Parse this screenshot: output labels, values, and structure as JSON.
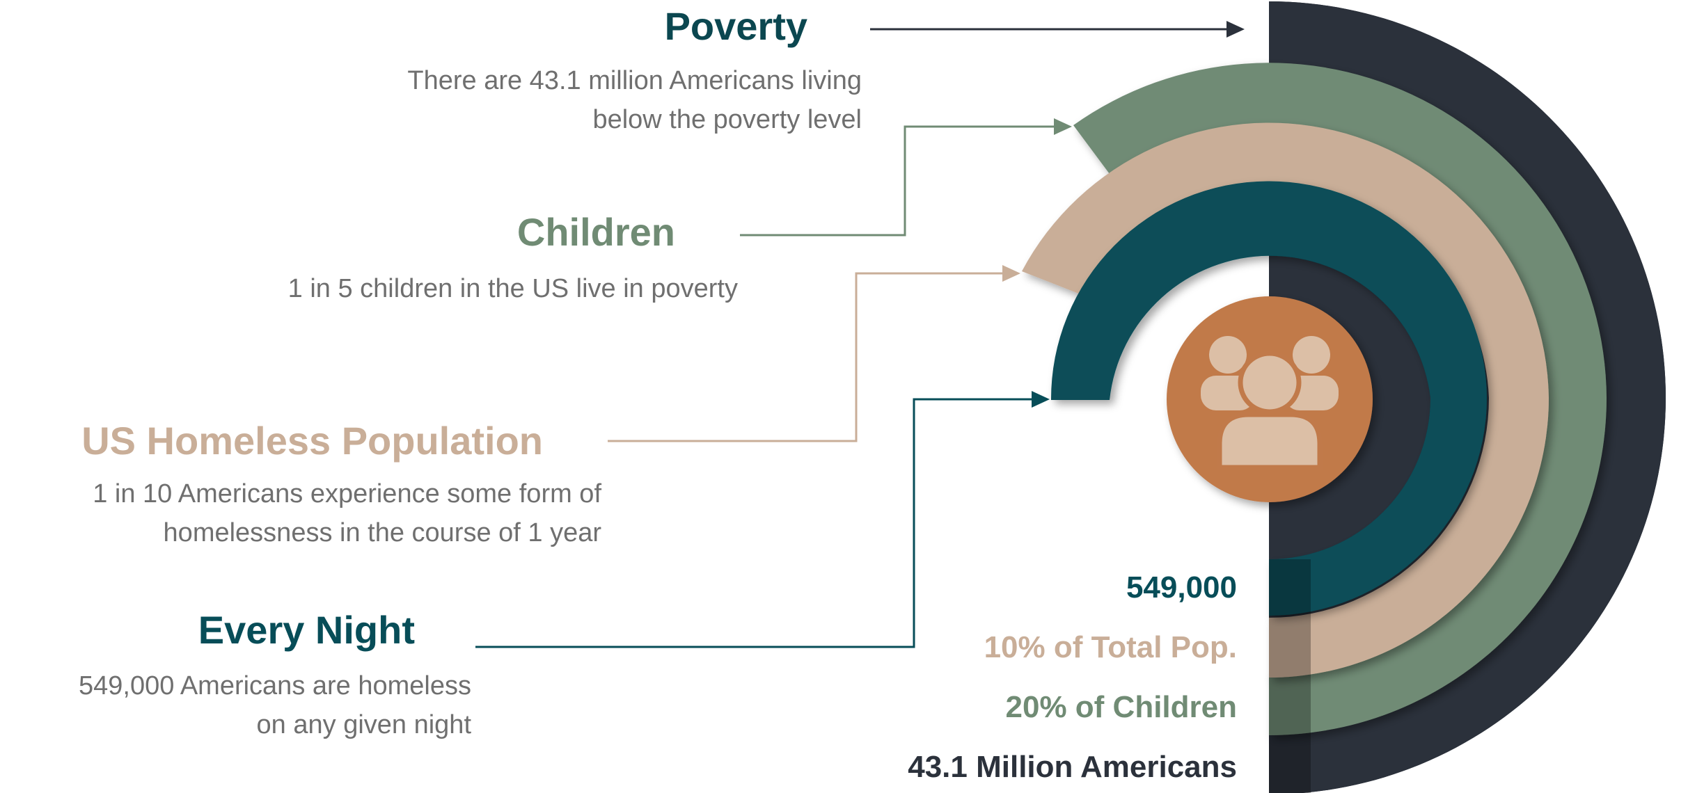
{
  "colors": {
    "poverty": "#2b313b",
    "children": "#708b74",
    "homeless": "#c9ae98",
    "every_night": "#074d58",
    "icon_circle": "#c17a4a",
    "icon_figures": "#dcbfa6",
    "description": "#6f6f6f"
  },
  "categories": [
    {
      "key": "poverty",
      "title": "Poverty",
      "description_lines": [
        "There are 43.1 million Americans living",
        "below the poverty level"
      ],
      "stat": "43.1 Million Americans"
    },
    {
      "key": "children",
      "title": "Children",
      "description_lines": [
        "1 in 5 children in the US live in poverty"
      ],
      "stat": "20% of Children"
    },
    {
      "key": "homeless",
      "title": "US Homeless Population",
      "description_lines": [
        "1 in 10 Americans experience some form of",
        "homelessness in the course of 1 year"
      ],
      "stat": "10% of Total Pop."
    },
    {
      "key": "every_night",
      "title": "Every Night",
      "description_lines": [
        "549,000 Americans are homeless",
        "on any given night"
      ],
      "stat": "549,000"
    }
  ],
  "center_icon": "group-people-icon"
}
